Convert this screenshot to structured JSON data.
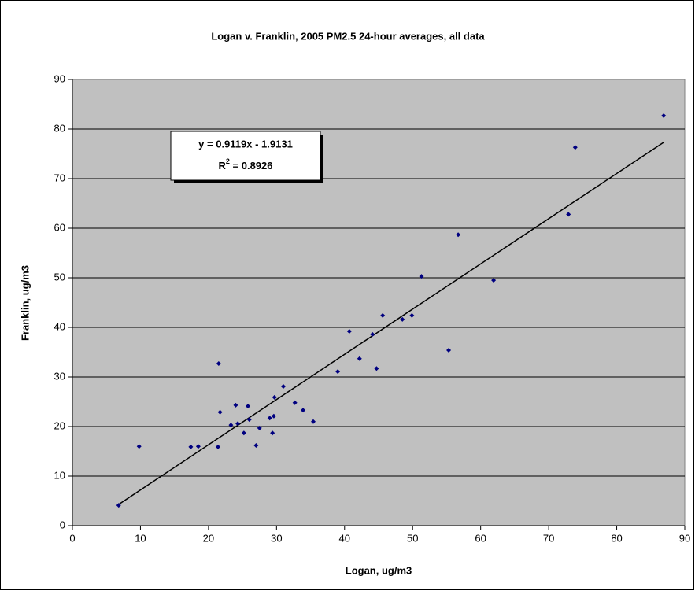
{
  "chart_data": {
    "type": "scatter",
    "title": "Logan v. Franklin, 2005 PM2.5 24-hour averages, all data",
    "x_label": "Logan, ug/m3",
    "y_label": "Franklin, ug/m3",
    "color": "#000080",
    "background": "#c0c0c0",
    "grid": true,
    "x": [
      6.8,
      9.8,
      17.4,
      18.5,
      21.5,
      21.7,
      21.4,
      23.3,
      24.0,
      24.3,
      25.2,
      25.8,
      26.0,
      27.0,
      27.5,
      29.0,
      29.4,
      29.6,
      29.7,
      31.0,
      32.7,
      33.9,
      35.4,
      39.0,
      40.7,
      42.2,
      44.1,
      44.7,
      45.6,
      48.5,
      49.9,
      51.3,
      55.3,
      56.7,
      61.9,
      72.9,
      73.9,
      86.9
    ],
    "values": [
      4.1,
      16.0,
      15.9,
      16.0,
      32.7,
      22.9,
      15.9,
      20.3,
      24.3,
      20.6,
      18.7,
      24.1,
      21.4,
      16.2,
      19.7,
      21.7,
      18.7,
      22.1,
      25.9,
      28.1,
      24.8,
      23.3,
      21.0,
      31.1,
      39.2,
      33.7,
      38.6,
      31.7,
      42.4,
      41.6,
      42.4,
      50.3,
      35.4,
      58.7,
      49.5,
      62.8,
      76.3,
      82.7
    ],
    "trendline": {
      "slope": 0.9119,
      "intercept": -1.9131,
      "color": "#000000"
    },
    "annotation": {
      "equation": "y = 0.9119x - 1.9131",
      "r2_symbol": "R",
      "r2_sup": "2",
      "r2_value": " = 0.8926"
    },
    "xlim": [
      0,
      90
    ],
    "xticks": [
      0,
      10,
      20,
      30,
      40,
      50,
      60,
      70,
      80,
      90
    ],
    "ylim": [
      0,
      90
    ],
    "yticks": [
      0,
      10,
      20,
      30,
      40,
      50,
      60,
      70,
      80,
      90
    ]
  }
}
